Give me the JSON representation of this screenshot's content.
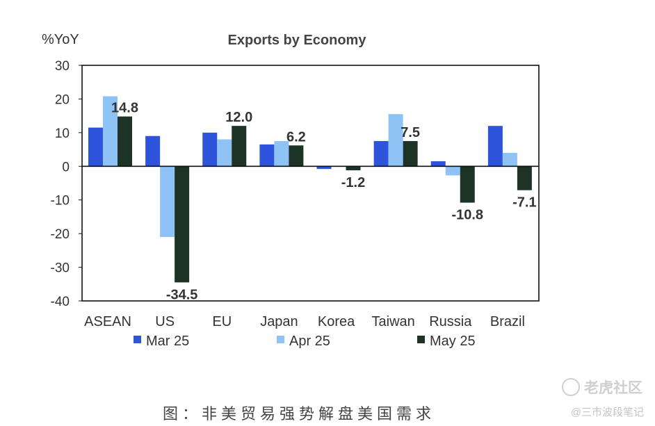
{
  "chart_data": {
    "type": "bar",
    "title": "Exports by Economy",
    "ylabel": "%YoY",
    "xlabel": "",
    "ylim": [
      -40,
      30
    ],
    "yticks": [
      30,
      20,
      10,
      0,
      -10,
      -20,
      -30,
      -40
    ],
    "categories": [
      "ASEAN",
      "US",
      "EU",
      "Japan",
      "Korea",
      "Taiwan",
      "Russia",
      "Brazil"
    ],
    "series": [
      {
        "name": "Mar 25",
        "color": "#2e54dc",
        "values": [
          11.5,
          9.0,
          10.0,
          6.5,
          -0.8,
          7.5,
          1.5,
          12.0
        ]
      },
      {
        "name": "Apr 25",
        "color": "#8fc3f5",
        "values": [
          20.8,
          -21.0,
          8.0,
          7.5,
          0.0,
          15.5,
          -2.7,
          4.0
        ]
      },
      {
        "name": "May 25",
        "color": "#1c3326",
        "values": [
          14.8,
          -34.5,
          12.0,
          6.2,
          -1.2,
          7.5,
          -10.8,
          -7.1
        ]
      }
    ],
    "data_labels": [
      "14.8",
      "-34.5",
      "12.0",
      "6.2",
      "-1.2",
      "7.5",
      "-10.8",
      "-7.1"
    ],
    "grid": false,
    "legend": "bottom"
  },
  "caption": "图：非美贸易强势解盘美国需求",
  "watermark": {
    "brand": "老虎社区",
    "author": "@三市波段笔记"
  }
}
